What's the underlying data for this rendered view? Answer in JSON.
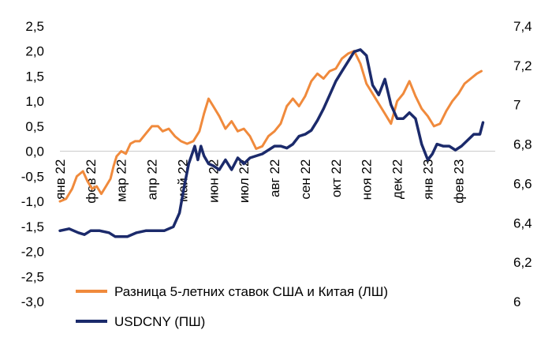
{
  "chart_data": {
    "type": "line",
    "title": "",
    "xlabel": "",
    "ylabel": "",
    "y_left_ticks": [
      "2,5",
      "2,0",
      "1,5",
      "1,0",
      "0,5",
      "0,0",
      "-0,5",
      "-1,0",
      "-1,5",
      "-2,0",
      "-2,5",
      "-3,0"
    ],
    "y_left_values": [
      2.5,
      2.0,
      1.5,
      1.0,
      0.5,
      0.0,
      -0.5,
      -1.0,
      -1.5,
      -2.0,
      -2.5,
      -3.0
    ],
    "y_right_ticks": [
      "7,4",
      "7,2",
      "7",
      "6,8",
      "6,6",
      "6,4",
      "6,2",
      "6"
    ],
    "y_right_values": [
      7.4,
      7.2,
      7.0,
      6.8,
      6.6,
      6.4,
      6.2,
      6.0
    ],
    "ylim_left": [
      -3.0,
      2.5
    ],
    "ylim_right": [
      6.0,
      7.4
    ],
    "x_range": [
      0,
      14.2
    ],
    "month_labels": [
      "янв 22",
      "фев 22",
      "мар 22",
      "апр 22",
      "май 22",
      "июн 22",
      "июл 22",
      "авг 22",
      "сен 22",
      "окт 22",
      "ноя 22",
      "дек 22",
      "янв 23",
      "фев 23"
    ],
    "month_positions": [
      0,
      1,
      2,
      3,
      4,
      5,
      6,
      7,
      8,
      9,
      10,
      11,
      12,
      13
    ],
    "legend_position": "bottom",
    "series": [
      {
        "name": "Разница 5-летних ставок США и Китая (ЛШ)",
        "axis": "left",
        "color": "#F08A3C",
        "x": [
          0,
          0.2,
          0.4,
          0.55,
          0.75,
          0.9,
          1.05,
          1.2,
          1.35,
          1.5,
          1.65,
          1.75,
          1.85,
          2.0,
          2.15,
          2.3,
          2.45,
          2.6,
          2.8,
          3.0,
          3.2,
          3.35,
          3.55,
          3.75,
          3.95,
          4.15,
          4.35,
          4.55,
          4.7,
          4.85,
          5.0,
          5.2,
          5.4,
          5.6,
          5.8,
          6.0,
          6.2,
          6.4,
          6.6,
          6.8,
          7.0,
          7.2,
          7.4,
          7.6,
          7.8,
          8.0,
          8.2,
          8.4,
          8.6,
          8.8,
          9.0,
          9.2,
          9.4,
          9.6,
          9.8,
          10.0,
          10.2,
          10.4,
          10.6,
          10.8,
          11.0,
          11.2,
          11.4,
          11.6,
          11.8,
          12.0,
          12.2,
          12.4,
          12.6,
          12.8,
          13.0,
          13.2,
          13.4,
          13.6,
          13.75
        ],
        "y": [
          -1.0,
          -0.95,
          -0.75,
          -0.5,
          -0.4,
          -0.6,
          -0.75,
          -0.7,
          -0.85,
          -0.7,
          -0.55,
          -0.3,
          -0.1,
          0.0,
          -0.05,
          0.15,
          0.2,
          0.2,
          0.35,
          0.5,
          0.5,
          0.4,
          0.45,
          0.3,
          0.2,
          0.15,
          0.2,
          0.4,
          0.75,
          1.05,
          0.9,
          0.7,
          0.45,
          0.6,
          0.4,
          0.45,
          0.3,
          0.05,
          0.1,
          0.3,
          0.4,
          0.55,
          0.9,
          1.05,
          0.9,
          1.1,
          1.4,
          1.55,
          1.45,
          1.6,
          1.65,
          1.85,
          1.95,
          2.0,
          1.75,
          1.35,
          1.15,
          0.95,
          0.75,
          0.55,
          1.0,
          1.15,
          1.4,
          1.1,
          0.85,
          0.7,
          0.5,
          0.55,
          0.8,
          1.0,
          1.15,
          1.35,
          1.45,
          1.55,
          1.6
        ]
      },
      {
        "name": "USDCNY (ПШ)",
        "axis": "right",
        "color": "#1B2A6B",
        "x": [
          0,
          0.3,
          0.6,
          0.8,
          1.0,
          1.3,
          1.6,
          1.8,
          2.0,
          2.2,
          2.5,
          2.8,
          3.1,
          3.4,
          3.7,
          3.9,
          4.05,
          4.2,
          4.4,
          4.5,
          4.6,
          4.7,
          4.85,
          5.0,
          5.2,
          5.4,
          5.6,
          5.8,
          6.0,
          6.2,
          6.4,
          6.6,
          6.8,
          7.0,
          7.2,
          7.4,
          7.6,
          7.8,
          8.0,
          8.2,
          8.4,
          8.6,
          8.8,
          9.0,
          9.2,
          9.4,
          9.6,
          9.8,
          10.0,
          10.2,
          10.4,
          10.6,
          10.8,
          11.0,
          11.2,
          11.4,
          11.6,
          11.8,
          12.0,
          12.15,
          12.3,
          12.5,
          12.7,
          12.9,
          13.1,
          13.3,
          13.5,
          13.7,
          13.8
        ],
        "y": [
          6.36,
          6.37,
          6.35,
          6.34,
          6.36,
          6.36,
          6.35,
          6.33,
          6.33,
          6.33,
          6.35,
          6.36,
          6.36,
          6.36,
          6.38,
          6.45,
          6.58,
          6.7,
          6.79,
          6.72,
          6.79,
          6.74,
          6.7,
          6.69,
          6.67,
          6.72,
          6.67,
          6.73,
          6.7,
          6.73,
          6.74,
          6.75,
          6.77,
          6.79,
          6.79,
          6.78,
          6.8,
          6.84,
          6.85,
          6.87,
          6.92,
          6.98,
          7.05,
          7.12,
          7.17,
          7.22,
          7.27,
          7.28,
          7.25,
          7.1,
          7.05,
          7.13,
          7.0,
          6.93,
          6.93,
          6.96,
          6.93,
          6.8,
          6.72,
          6.75,
          6.8,
          6.79,
          6.79,
          6.77,
          6.79,
          6.82,
          6.85,
          6.85,
          6.91
        ]
      }
    ]
  },
  "legend": {
    "items": [
      {
        "label": "Разница 5-летних ставок США и Китая (ЛШ)",
        "color": "#F08A3C"
      },
      {
        "label": "USDCNY (ПШ)",
        "color": "#1B2A6B"
      }
    ]
  }
}
